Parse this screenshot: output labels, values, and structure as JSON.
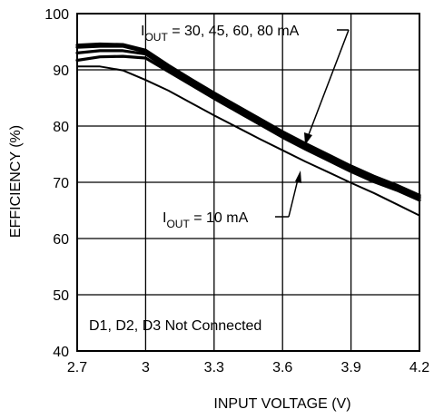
{
  "chart_data": {
    "type": "line",
    "title": "",
    "xlabel": "INPUT VOLTAGE (V)",
    "ylabel": "EFFICIENCY (%)",
    "xlim": [
      2.7,
      4.2
    ],
    "ylim": [
      40,
      100
    ],
    "xticks": [
      2.7,
      3,
      3.3,
      3.6,
      3.9,
      4.2
    ],
    "xtick_labels": [
      "2.7",
      "3",
      "3.3",
      "3.6",
      "3.9",
      "4.2"
    ],
    "yticks": [
      40,
      50,
      60,
      70,
      80,
      90,
      100
    ],
    "ytick_labels": [
      "40",
      "50",
      "60",
      "70",
      "80",
      "90",
      "100"
    ],
    "grid": true,
    "series": [
      {
        "name": "IOUT = 10 mA",
        "x": [
          2.7,
          2.8,
          2.9,
          3.0,
          3.1,
          3.2,
          3.3,
          3.4,
          3.5,
          3.6,
          3.7,
          3.8,
          3.9,
          4.0,
          4.1,
          4.2
        ],
        "y": [
          90.6,
          90.6,
          89.9,
          88.2,
          86.3,
          84.1,
          81.9,
          79.8,
          77.7,
          75.7,
          73.7,
          71.8,
          69.9,
          68.1,
          66.1,
          64.1
        ]
      },
      {
        "name": "IOUT = 30 mA",
        "x": [
          2.7,
          2.8,
          2.9,
          3.0,
          3.1,
          3.2,
          3.3,
          3.4,
          3.5,
          3.6,
          3.7,
          3.8,
          3.9,
          4.0,
          4.1,
          4.2
        ],
        "y": [
          91.7,
          92.3,
          92.4,
          92.1,
          89.7,
          87.3,
          84.9,
          82.6,
          80.3,
          78.0,
          75.9,
          73.9,
          71.9,
          70.1,
          68.6,
          66.8
        ]
      },
      {
        "name": "IOUT = 45 mA",
        "x": [
          2.7,
          2.8,
          2.9,
          3.0,
          3.1,
          3.2,
          3.3,
          3.4,
          3.5,
          3.6,
          3.7,
          3.8,
          3.9,
          4.0,
          4.1,
          4.2
        ],
        "y": [
          93.0,
          93.4,
          93.4,
          92.8,
          90.1,
          87.7,
          85.3,
          83.0,
          80.7,
          78.4,
          76.3,
          74.3,
          72.3,
          70.5,
          68.9,
          67.2
        ]
      },
      {
        "name": "IOUT = 60 mA",
        "x": [
          2.7,
          2.8,
          2.9,
          3.0,
          3.1,
          3.2,
          3.3,
          3.4,
          3.5,
          3.6,
          3.7,
          3.8,
          3.9,
          4.0,
          4.1,
          4.2
        ],
        "y": [
          94.0,
          94.2,
          94.2,
          93.2,
          90.5,
          88.0,
          85.6,
          83.3,
          81.0,
          78.7,
          76.6,
          74.6,
          72.6,
          70.8,
          69.2,
          67.4
        ]
      },
      {
        "name": "IOUT = 80 mA",
        "x": [
          2.7,
          2.8,
          2.9,
          3.0,
          3.1,
          3.2,
          3.3,
          3.4,
          3.5,
          3.6,
          3.7,
          3.8,
          3.9,
          4.0,
          4.1,
          4.2
        ],
        "y": [
          94.4,
          94.6,
          94.5,
          93.5,
          90.8,
          88.3,
          85.9,
          83.6,
          81.3,
          79.0,
          76.9,
          74.9,
          72.9,
          71.1,
          69.5,
          67.7
        ]
      }
    ],
    "annotations": {
      "high_load": {
        "main": "I",
        "sub": "OUT",
        "rest": " = 30, 45, 60, 80 mA"
      },
      "low_load": {
        "main": "I",
        "sub": "OUT",
        "rest": " = 10 mA"
      },
      "note": "D1, D2, D3 Not Connected"
    },
    "colors": {
      "line": "#000000",
      "grid": "#000000",
      "background": "#ffffff"
    }
  }
}
